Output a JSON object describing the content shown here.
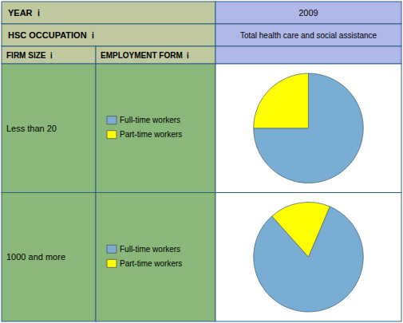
{
  "chart_data": [
    {
      "type": "pie",
      "title": "Less than 20",
      "annotations": [
        "YEAR  ℹ",
        "2009",
        "HSC OCCUPATION  ℹ",
        "Total health care and social assistance",
        "FIRM SIZE  ℹ",
        "EMPLOYMENT FORM  ℹ"
      ],
      "categories": [
        "Full-time workers",
        "Part-time workers"
      ],
      "values": [
        75,
        25
      ],
      "colors": [
        "#7aadd4",
        "#ffff00"
      ],
      "legend": "left"
    },
    {
      "type": "pie",
      "title": "1000 and more",
      "categories": [
        "Full-time workers",
        "Part-time workers"
      ],
      "values": [
        82,
        18
      ],
      "colors": [
        "#7aadd4",
        "#ffff00"
      ],
      "legend": "left"
    }
  ]
}
